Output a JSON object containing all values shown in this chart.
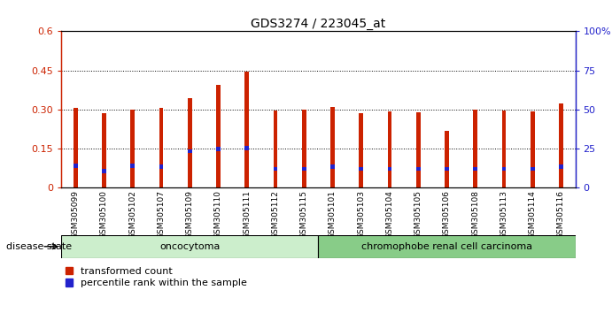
{
  "title": "GDS3274 / 223045_at",
  "samples": [
    "GSM305099",
    "GSM305100",
    "GSM305102",
    "GSM305107",
    "GSM305109",
    "GSM305110",
    "GSM305111",
    "GSM305112",
    "GSM305115",
    "GSM305101",
    "GSM305103",
    "GSM305104",
    "GSM305105",
    "GSM305106",
    "GSM305108",
    "GSM305113",
    "GSM305114",
    "GSM305116"
  ],
  "transformed_count": [
    0.305,
    0.285,
    0.3,
    0.305,
    0.345,
    0.395,
    0.445,
    0.295,
    0.298,
    0.31,
    0.285,
    0.293,
    0.29,
    0.22,
    0.298,
    0.295,
    0.293,
    0.325
  ],
  "percentile_rank": [
    0.085,
    0.063,
    0.085,
    0.082,
    0.14,
    0.148,
    0.152,
    0.073,
    0.073,
    0.082,
    0.073,
    0.073,
    0.073,
    0.073,
    0.073,
    0.073,
    0.073,
    0.082
  ],
  "group_labels": [
    "oncocytoma",
    "chromophobe renal cell carcinoma"
  ],
  "group_sizes": [
    9,
    9
  ],
  "bar_color": "#cc2200",
  "percentile_color": "#2222cc",
  "ylim_left": [
    0,
    0.6
  ],
  "ylim_right": [
    0,
    100
  ],
  "yticks_left": [
    0,
    0.15,
    0.3,
    0.45,
    0.6
  ],
  "yticks_right": [
    0,
    25,
    50,
    75,
    100
  ],
  "ytick_labels_left": [
    "0",
    "0.15",
    "0.30",
    "0.45",
    "0.6"
  ],
  "ytick_labels_right": [
    "0",
    "25",
    "50",
    "75",
    "100%"
  ],
  "legend_items": [
    "transformed count",
    "percentile rank within the sample"
  ],
  "disease_state_label": "disease state",
  "bar_width": 0.15
}
